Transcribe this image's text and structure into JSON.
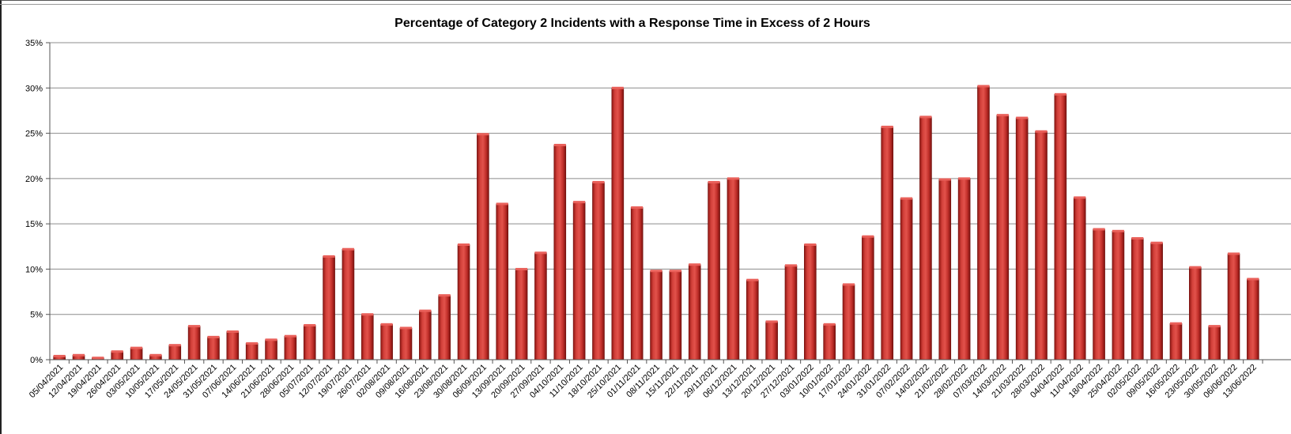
{
  "chart_data": {
    "type": "bar",
    "title": "Percentage of Category 2 Incidents with a Response Time in Excess of 2 Hours",
    "xlabel": "",
    "ylabel": "",
    "ylim": [
      0,
      35
    ],
    "yticks": [
      "0%",
      "5%",
      "10%",
      "15%",
      "20%",
      "25%",
      "30%",
      "35%"
    ],
    "ytick_values": [
      0,
      5,
      10,
      15,
      20,
      25,
      30,
      35
    ],
    "grid": true,
    "legend": "none",
    "bar_color": "#c0302c",
    "categories": [
      "05/04/2021",
      "12/04/2021",
      "19/04/2021",
      "26/04/2021",
      "03/05/2021",
      "10/05/2021",
      "17/05/2021",
      "24/05/2021",
      "31/05/2021",
      "07/06/2021",
      "14/06/2021",
      "21/06/2021",
      "28/06/2021",
      "05/07/2021",
      "12/07/2021",
      "19/07/2021",
      "26/07/2021",
      "02/08/2021",
      "09/08/2021",
      "16/08/2021",
      "23/08/2021",
      "30/08/2021",
      "06/09/2021",
      "13/09/2021",
      "20/09/2021",
      "27/09/2021",
      "04/10/2021",
      "11/10/2021",
      "18/10/2021",
      "25/10/2021",
      "01/11/2021",
      "08/11/2021",
      "15/11/2021",
      "22/11/2021",
      "29/11/2021",
      "06/12/2021",
      "13/12/2021",
      "20/12/2021",
      "27/12/2021",
      "03/01/2022",
      "10/01/2022",
      "17/01/2022",
      "24/01/2022",
      "31/01/2022",
      "07/02/2022",
      "14/02/2022",
      "21/02/2022",
      "28/02/2022",
      "07/03/2022",
      "14/03/2022",
      "21/03/2022",
      "28/03/2022",
      "04/04/2022",
      "11/04/2022",
      "18/04/2022",
      "25/04/2022",
      "02/05/2022",
      "09/05/2022",
      "16/05/2022",
      "23/05/2022",
      "30/05/2022",
      "06/06/2022",
      "13/06/2022"
    ],
    "values": [
      0.4,
      0.5,
      0.2,
      0.9,
      1.3,
      0.5,
      1.6,
      3.7,
      2.5,
      3.1,
      1.8,
      2.2,
      2.6,
      3.8,
      11.4,
      12.2,
      5.0,
      3.9,
      3.5,
      5.4,
      7.1,
      12.7,
      24.9,
      17.2,
      10.0,
      11.8,
      23.7,
      17.4,
      19.6,
      30.0,
      16.8,
      9.8,
      9.8,
      10.5,
      19.6,
      20.0,
      8.8,
      4.2,
      10.4,
      12.7,
      3.9,
      8.3,
      13.6,
      25.7,
      17.8,
      26.8,
      19.9,
      20.0,
      30.2,
      27.0,
      26.7,
      25.2,
      29.3,
      17.9,
      14.4,
      14.2,
      13.4,
      12.9,
      4.0,
      10.2,
      3.7,
      11.7,
      8.9
    ]
  }
}
